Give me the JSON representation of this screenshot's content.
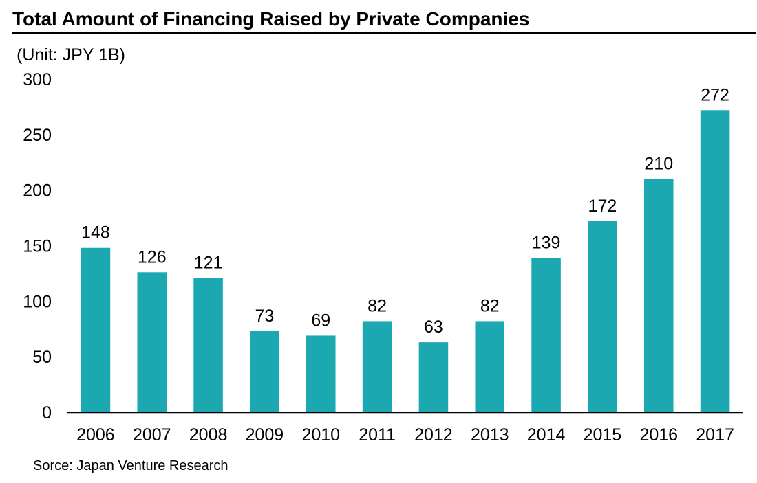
{
  "header": {
    "title": "Total Amount of Financing Raised by Private Companies"
  },
  "unit_label": "(Unit: JPY 1B)",
  "footer": {
    "source": "Sorce: Japan Venture Research"
  },
  "colors": {
    "bar": "#1BA8B1",
    "axis": "#000000",
    "text": "#000000"
  },
  "chart_data": {
    "type": "bar",
    "title": "Total Amount of Financing Raised by Private Companies",
    "xlabel": "",
    "ylabel": "(Unit: JPY 1B)",
    "categories": [
      "2006",
      "2007",
      "2008",
      "2009",
      "2010",
      "2011",
      "2012",
      "2013",
      "2014",
      "2015",
      "2016",
      "2017"
    ],
    "values": [
      148,
      126,
      121,
      73,
      69,
      82,
      63,
      82,
      139,
      172,
      210,
      272
    ],
    "ylim": [
      0,
      300
    ],
    "yticks": [
      0,
      50,
      100,
      150,
      200,
      250,
      300
    ],
    "grid": false,
    "data_labels": true,
    "legend": "none"
  }
}
